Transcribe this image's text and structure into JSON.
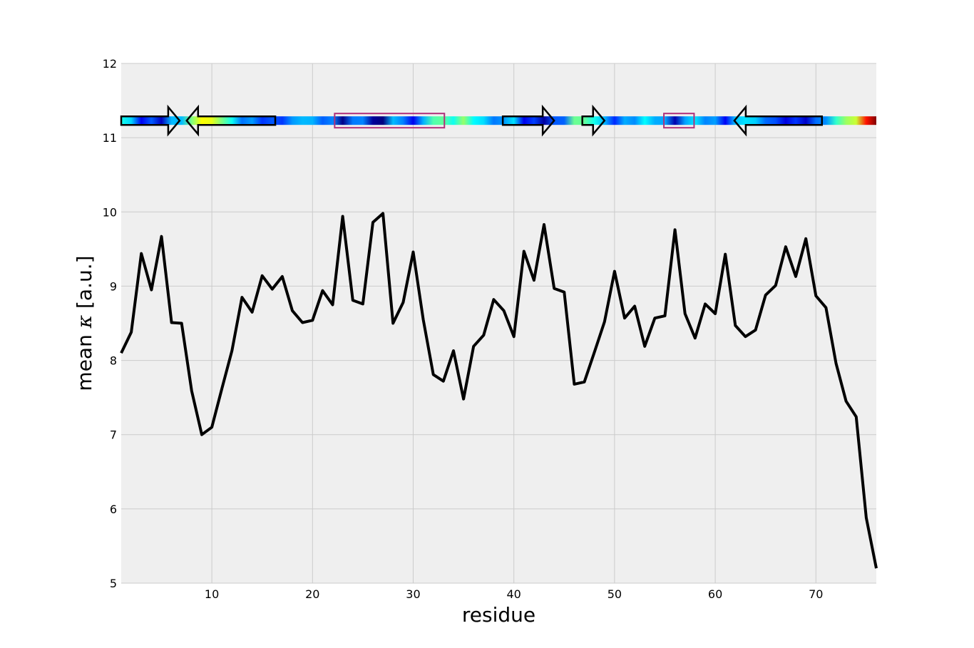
{
  "chart_data": {
    "type": "line",
    "title": "",
    "xlabel": "residue",
    "ylabel_prefix": "mean ",
    "ylabel_symbol": "κ",
    "ylabel_suffix": " [a.u.]",
    "xlim": [
      1,
      76
    ],
    "ylim": [
      5,
      12
    ],
    "xticks": [
      10,
      20,
      30,
      40,
      50,
      60,
      70
    ],
    "yticks": [
      5,
      6,
      7,
      8,
      9,
      10,
      11,
      12
    ],
    "grid": true,
    "series": [
      {
        "color": "#000000",
        "x": [
          1,
          2,
          3,
          4,
          5,
          6,
          7,
          8,
          9,
          10,
          11,
          12,
          13,
          14,
          15,
          16,
          17,
          18,
          19,
          20,
          21,
          22,
          23,
          24,
          25,
          26,
          27,
          28,
          29,
          30,
          31,
          32,
          33,
          34,
          35,
          36,
          37,
          38,
          39,
          40,
          41,
          42,
          43,
          44,
          45,
          46,
          47,
          48,
          49,
          50,
          51,
          52,
          53,
          54,
          55,
          56,
          57,
          58,
          59,
          60,
          61,
          62,
          63,
          64,
          65,
          66,
          67,
          68,
          69,
          70,
          71,
          72,
          73,
          74,
          75,
          76
        ],
        "values": [
          8.1,
          8.38,
          9.44,
          8.95,
          9.67,
          8.51,
          8.5,
          7.59,
          7.0,
          7.1,
          7.62,
          8.13,
          8.85,
          8.65,
          9.14,
          8.96,
          9.13,
          8.67,
          8.51,
          8.54,
          8.94,
          8.75,
          9.94,
          8.81,
          8.76,
          9.86,
          9.98,
          8.5,
          8.78,
          9.46,
          8.55,
          7.81,
          7.72,
          8.13,
          7.48,
          8.19,
          8.34,
          8.82,
          8.67,
          8.32,
          9.47,
          9.08,
          9.83,
          8.97,
          8.92,
          7.68,
          7.71,
          8.11,
          8.52,
          9.2,
          8.57,
          8.73,
          8.19,
          8.57,
          8.6,
          9.76,
          8.63,
          8.3,
          8.76,
          8.63,
          9.43,
          8.47,
          8.32,
          8.41,
          8.88,
          9.01,
          9.53,
          9.13,
          9.64,
          8.87,
          8.71,
          7.96,
          7.45,
          7.24,
          5.88,
          5.2
        ]
      }
    ],
    "bar_level": 11.23,
    "bar_colormap": "jet",
    "bar_colormap_stops": [
      "#00007f",
      "#0000ff",
      "#007fff",
      "#00ffff",
      "#7fff7f",
      "#ffff00",
      "#ff7f00",
      "#ff0000",
      "#7f0000"
    ],
    "annotations": {
      "strands": [
        {
          "start": 1,
          "end": 6.8,
          "direction": "right",
          "color": "#000000"
        },
        {
          "start": 7.5,
          "end": 16.3,
          "direction": "left",
          "color": "#000000"
        },
        {
          "start": 38.9,
          "end": 44,
          "direction": "right",
          "color": "#000000"
        },
        {
          "start": 46.8,
          "end": 49,
          "direction": "right",
          "color": "#000000"
        },
        {
          "start": 61.9,
          "end": 70.6,
          "direction": "left",
          "color": "#000000"
        }
      ],
      "helices": [
        {
          "start": 22.2,
          "end": 33.1,
          "color": "#b0307a"
        },
        {
          "start": 54.9,
          "end": 57.9,
          "color": "#b0307a"
        }
      ]
    },
    "colors": {
      "plot_background": "#efefef",
      "grid": "#cbcbcb",
      "line": "#000000",
      "helix_box": "#b0307a",
      "arrow_outline": "#000000"
    }
  }
}
